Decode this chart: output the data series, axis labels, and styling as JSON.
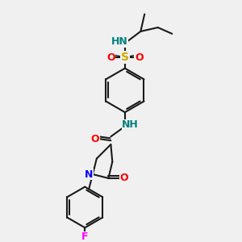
{
  "background_color": "#f0f0f0",
  "bond_color": "#1a1a1a",
  "atom_colors": {
    "N": "#0000ff",
    "O": "#ff0000",
    "S": "#ccaa00",
    "F": "#ff00ff",
    "H_on_N": "#008080",
    "C": "#1a1a1a"
  },
  "figsize": [
    3.0,
    3.0
  ],
  "dpi": 100
}
